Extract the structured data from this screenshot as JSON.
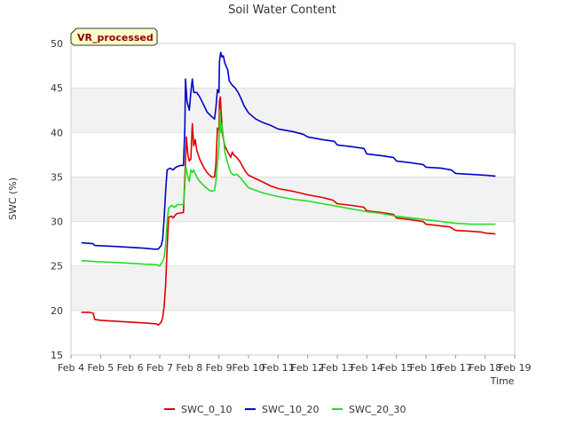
{
  "chart_data": {
    "type": "line",
    "title": "Soil Water Content",
    "xlabel": "Time",
    "ylabel": "SWC (%)",
    "badge": "VR_processed",
    "xlim": [
      4,
      19
    ],
    "ylim": [
      15,
      50
    ],
    "x_ticks": [
      4,
      5,
      6,
      7,
      8,
      9,
      10,
      11,
      12,
      13,
      14,
      15,
      16,
      17,
      18,
      19
    ],
    "x_tick_labels": [
      "Feb 4",
      "Feb 5",
      "Feb 6",
      "Feb 7",
      "Feb 8",
      "Feb 9",
      "Feb 10",
      "Feb 11",
      "Feb 12",
      "Feb 13",
      "Feb 14",
      "Feb 15",
      "Feb 16",
      "Feb 17",
      "Feb 18",
      "Feb 19"
    ],
    "y_ticks": [
      15,
      20,
      25,
      30,
      35,
      40,
      45,
      50
    ],
    "grid": "horizontal bands",
    "legend_position": "bottom",
    "series": [
      {
        "name": "SWC_0_10",
        "color": "#dd0000",
        "points": [
          [
            4.35,
            19.8
          ],
          [
            4.6,
            19.8
          ],
          [
            4.75,
            19.7
          ],
          [
            4.8,
            19.0
          ],
          [
            5.0,
            18.9
          ],
          [
            5.5,
            18.8
          ],
          [
            6.0,
            18.7
          ],
          [
            6.5,
            18.6
          ],
          [
            6.9,
            18.5
          ],
          [
            6.95,
            18.35
          ],
          [
            7.05,
            18.7
          ],
          [
            7.1,
            19.2
          ],
          [
            7.15,
            20.5
          ],
          [
            7.2,
            23
          ],
          [
            7.25,
            27
          ],
          [
            7.3,
            30.5
          ],
          [
            7.4,
            30.6
          ],
          [
            7.45,
            30.4
          ],
          [
            7.55,
            30.8
          ],
          [
            7.6,
            30.9
          ],
          [
            7.8,
            31.0
          ],
          [
            7.85,
            35.0
          ],
          [
            7.9,
            39.5
          ],
          [
            7.95,
            37.5
          ],
          [
            8.0,
            36.8
          ],
          [
            8.05,
            37.0
          ],
          [
            8.1,
            41.0
          ],
          [
            8.15,
            38.5
          ],
          [
            8.2,
            39.2
          ],
          [
            8.25,
            38.0
          ],
          [
            8.35,
            37.0
          ],
          [
            8.5,
            36.0
          ],
          [
            8.6,
            35.5
          ],
          [
            8.75,
            35.0
          ],
          [
            8.85,
            35.0
          ],
          [
            8.9,
            36.5
          ],
          [
            8.95,
            40.5
          ],
          [
            9.0,
            40.3
          ],
          [
            9.02,
            43.5
          ],
          [
            9.05,
            44.0
          ],
          [
            9.08,
            42.0
          ],
          [
            9.12,
            39.8
          ],
          [
            9.2,
            38.5
          ],
          [
            9.3,
            37.8
          ],
          [
            9.4,
            37.2
          ],
          [
            9.45,
            37.8
          ],
          [
            9.5,
            37.5
          ],
          [
            9.6,
            37.2
          ],
          [
            9.7,
            36.8
          ],
          [
            9.8,
            36.2
          ],
          [
            9.9,
            35.6
          ],
          [
            10.0,
            35.2
          ],
          [
            10.25,
            34.8
          ],
          [
            10.5,
            34.4
          ],
          [
            10.75,
            34.0
          ],
          [
            11.0,
            33.7
          ],
          [
            11.5,
            33.4
          ],
          [
            12.0,
            33.0
          ],
          [
            12.5,
            32.7
          ],
          [
            12.85,
            32.4
          ],
          [
            13.0,
            32.0
          ],
          [
            13.5,
            31.8
          ],
          [
            13.9,
            31.6
          ],
          [
            14.0,
            31.2
          ],
          [
            14.5,
            31.0
          ],
          [
            14.9,
            30.8
          ],
          [
            15.0,
            30.4
          ],
          [
            15.5,
            30.2
          ],
          [
            15.9,
            30.0
          ],
          [
            16.0,
            29.7
          ],
          [
            16.5,
            29.5
          ],
          [
            16.8,
            29.4
          ],
          [
            17.0,
            29.0
          ],
          [
            17.5,
            28.9
          ],
          [
            17.9,
            28.8
          ],
          [
            18.0,
            28.7
          ],
          [
            18.35,
            28.6
          ]
        ]
      },
      {
        "name": "SWC_10_20",
        "color": "#0000cc",
        "points": [
          [
            4.35,
            27.6
          ],
          [
            4.75,
            27.5
          ],
          [
            4.8,
            27.3
          ],
          [
            5.5,
            27.2
          ],
          [
            6.0,
            27.1
          ],
          [
            6.5,
            27.0
          ],
          [
            6.8,
            26.9
          ],
          [
            6.95,
            26.9
          ],
          [
            7.05,
            27.3
          ],
          [
            7.1,
            28.0
          ],
          [
            7.15,
            30.5
          ],
          [
            7.2,
            33.5
          ],
          [
            7.25,
            35.8
          ],
          [
            7.35,
            36.0
          ],
          [
            7.45,
            35.8
          ],
          [
            7.55,
            36.1
          ],
          [
            7.7,
            36.3
          ],
          [
            7.8,
            36.3
          ],
          [
            7.85,
            40.5
          ],
          [
            7.87,
            46.0
          ],
          [
            7.92,
            43.5
          ],
          [
            8.0,
            42.5
          ],
          [
            8.05,
            44.5
          ],
          [
            8.1,
            46.0
          ],
          [
            8.15,
            44.5
          ],
          [
            8.25,
            44.5
          ],
          [
            8.35,
            44.0
          ],
          [
            8.5,
            43.0
          ],
          [
            8.6,
            42.3
          ],
          [
            8.75,
            41.8
          ],
          [
            8.85,
            41.5
          ],
          [
            8.9,
            42.8
          ],
          [
            8.95,
            44.8
          ],
          [
            9.0,
            44.5
          ],
          [
            9.02,
            48.0
          ],
          [
            9.06,
            49.0
          ],
          [
            9.1,
            48.5
          ],
          [
            9.15,
            48.6
          ],
          [
            9.2,
            47.8
          ],
          [
            9.3,
            47.0
          ],
          [
            9.35,
            45.8
          ],
          [
            9.45,
            45.3
          ],
          [
            9.55,
            45.0
          ],
          [
            9.65,
            44.5
          ],
          [
            9.75,
            43.8
          ],
          [
            9.85,
            43.0
          ],
          [
            10.0,
            42.2
          ],
          [
            10.25,
            41.5
          ],
          [
            10.5,
            41.1
          ],
          [
            10.75,
            40.8
          ],
          [
            11.0,
            40.4
          ],
          [
            11.5,
            40.1
          ],
          [
            11.85,
            39.8
          ],
          [
            12.0,
            39.5
          ],
          [
            12.5,
            39.2
          ],
          [
            12.9,
            39.0
          ],
          [
            13.0,
            38.6
          ],
          [
            13.5,
            38.4
          ],
          [
            13.9,
            38.2
          ],
          [
            14.0,
            37.6
          ],
          [
            14.5,
            37.4
          ],
          [
            14.9,
            37.2
          ],
          [
            15.0,
            36.8
          ],
          [
            15.5,
            36.6
          ],
          [
            15.9,
            36.4
          ],
          [
            16.0,
            36.1
          ],
          [
            16.5,
            36.0
          ],
          [
            16.85,
            35.8
          ],
          [
            17.0,
            35.4
          ],
          [
            17.5,
            35.3
          ],
          [
            18.0,
            35.2
          ],
          [
            18.35,
            35.1
          ]
        ]
      },
      {
        "name": "SWC_20_30",
        "color": "#22dd22",
        "points": [
          [
            4.35,
            25.6
          ],
          [
            4.8,
            25.5
          ],
          [
            5.5,
            25.4
          ],
          [
            6.0,
            25.3
          ],
          [
            6.5,
            25.2
          ],
          [
            6.9,
            25.15
          ],
          [
            7.0,
            25.0
          ],
          [
            7.05,
            25.3
          ],
          [
            7.1,
            25.5
          ],
          [
            7.15,
            26.0
          ],
          [
            7.2,
            27.5
          ],
          [
            7.25,
            30.0
          ],
          [
            7.3,
            31.5
          ],
          [
            7.4,
            31.8
          ],
          [
            7.5,
            31.6
          ],
          [
            7.6,
            31.9
          ],
          [
            7.8,
            31.9
          ],
          [
            7.85,
            34.0
          ],
          [
            7.88,
            36.2
          ],
          [
            7.95,
            35.0
          ],
          [
            8.0,
            34.5
          ],
          [
            8.05,
            35.8
          ],
          [
            8.1,
            35.5
          ],
          [
            8.15,
            35.8
          ],
          [
            8.25,
            35.0
          ],
          [
            8.35,
            34.5
          ],
          [
            8.5,
            34.0
          ],
          [
            8.6,
            33.7
          ],
          [
            8.75,
            33.4
          ],
          [
            8.85,
            33.5
          ],
          [
            8.9,
            34.5
          ],
          [
            8.95,
            36.5
          ],
          [
            9.0,
            38.5
          ],
          [
            9.03,
            42.5
          ],
          [
            9.06,
            40.0
          ],
          [
            9.1,
            41.0
          ],
          [
            9.15,
            39.5
          ],
          [
            9.2,
            37.8
          ],
          [
            9.3,
            36.5
          ],
          [
            9.4,
            35.5
          ],
          [
            9.5,
            35.2
          ],
          [
            9.6,
            35.3
          ],
          [
            9.7,
            35.0
          ],
          [
            9.8,
            34.6
          ],
          [
            9.9,
            34.2
          ],
          [
            10.0,
            33.8
          ],
          [
            10.25,
            33.5
          ],
          [
            10.5,
            33.2
          ],
          [
            11.0,
            32.8
          ],
          [
            11.5,
            32.5
          ],
          [
            12.0,
            32.3
          ],
          [
            12.5,
            32.0
          ],
          [
            13.0,
            31.7
          ],
          [
            13.5,
            31.4
          ],
          [
            14.0,
            31.1
          ],
          [
            14.5,
            30.9
          ],
          [
            15.0,
            30.6
          ],
          [
            15.5,
            30.4
          ],
          [
            16.0,
            30.2
          ],
          [
            16.5,
            30.0
          ],
          [
            17.0,
            29.8
          ],
          [
            17.5,
            29.7
          ],
          [
            18.35,
            29.7
          ]
        ]
      }
    ]
  }
}
